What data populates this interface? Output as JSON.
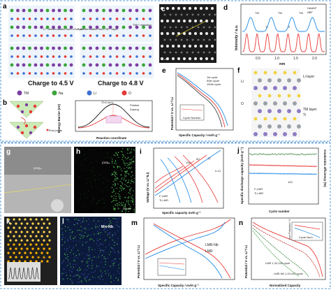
{
  "panels": {
    "a": {
      "letter": "a",
      "charge1": "Charge to 4.5 V",
      "charge2": "Charge to 4.8 V",
      "ann_li": "Li⁺ deintercalated from Li⁺-layer",
      "ann_li_tm": "Li⁺ deintercalated from TMⁿ⁺-layer",
      "ann_tm": "TMⁿ⁺ migration",
      "legend": [
        "TM",
        "Na",
        "Li",
        "O"
      ],
      "legend_colors": [
        "#7b3fa0",
        "#3aa63a",
        "#3c6fd1",
        "#e53935"
      ]
    },
    "b": {
      "letter": "b",
      "ylabel": "Energy Barrier (eV)",
      "xlabel": "Reaction coordinate",
      "barrier_label": "70.6 meV",
      "legend": [
        "Pristine",
        "Doping"
      ],
      "end_points": "End points",
      "in_plane": "O"
    },
    "c": {
      "letter": "c",
      "li_layer": "Li layer",
      "tm_layer": "TM layer",
      "scale": "1 nm"
    },
    "d": {
      "letter": "d",
      "ylabel": "Intensity / a.u.",
      "xlabel": "nm",
      "legend": [
        "HAADF",
        "ABF"
      ],
      "labels": [
        "TM",
        "TM",
        "TM",
        "Ti",
        "Ti"
      ],
      "chart_data": {
        "type": "line",
        "x_ticks": [
          "0.5",
          "1.0",
          "1.5",
          "2.0"
        ],
        "series": [
          {
            "name": "HAADF"
          },
          {
            "name": "ABF"
          }
        ]
      }
    },
    "e": {
      "letter": "e",
      "ylabel": "Potential / V vs. Li⁺/ Li",
      "xlabel": "Specific Capacity / mAh g⁻¹",
      "legend": [
        "1st cycle",
        "50th cycle",
        "100th cycle"
      ],
      "inset_xlabel": "Cycle Number"
    },
    "f": {
      "letter": "f",
      "li_layer": "Li layer",
      "tm_layer": "TM layer",
      "ti": "Ti",
      "li": "Li",
      "o": "O"
    },
    "g": {
      "letter": "g",
      "label": "(003)ₘ"
    },
    "h": {
      "letter": "h",
      "label": "(003)ₘ",
      "scale": "20 nm"
    },
    "i": {
      "letter": "i",
      "ylabel": "Voltage (V vs. Li⁺/Li)",
      "xlabel": "Specific capacity mAh g⁻¹",
      "rates": [
        "10C",
        "5C",
        "1C",
        "0.1C"
      ],
      "legend": [
        "F-LMR",
        "Ti-LMR"
      ]
    },
    "j": {
      "letter": "j",
      "ylabel": "Specific discharge capacity (mAh g⁻¹)",
      "y2label": "Coulombic efficiency (%)",
      "xlabel": "Cycle number",
      "rate": "10C",
      "legend": [
        "F-LMR",
        "Ti-LMR"
      ]
    },
    "k": {
      "letter": "k",
      "line_scan": "line scan"
    },
    "l": {
      "letter": "l",
      "label": "Mn-Nb"
    },
    "m": {
      "letter": "m",
      "ylabel": "Potential / V vs. Li⁺/ Li",
      "xlabel": "Specific Capacity / mAh g⁻¹",
      "legend": [
        "LMR-Nb",
        "LMR"
      ]
    },
    "n": {
      "letter": "n",
      "ylabel": "Potential / V vs. Li⁺/ Li",
      "xlabel": "Normalized Capacity",
      "label1": "LMR 1,20,100 cycle",
      "label2": "LMR-Nb 1,20,100 cycle",
      "inset_ylabel": "Ave Potential / V",
      "inset_xlabel": "Cycle Num."
    }
  }
}
